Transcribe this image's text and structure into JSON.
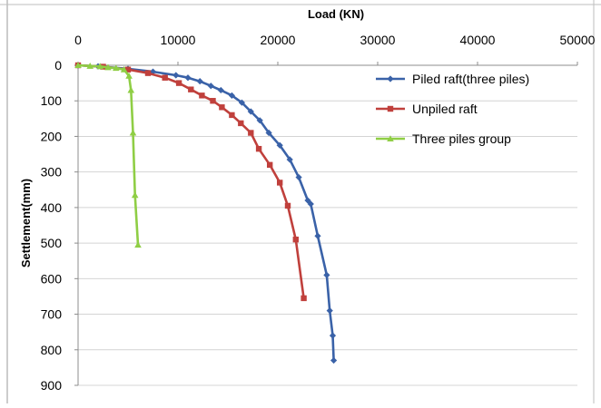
{
  "chart_data": {
    "type": "line",
    "title": "",
    "xlabel": "Load (KN)",
    "ylabel": "Settlement(mm)",
    "x_axis_position": "top",
    "y_axis_inverted": true,
    "xlim": [
      0,
      50000
    ],
    "ylim": [
      0,
      900
    ],
    "x_ticks": [
      0,
      10000,
      20000,
      30000,
      40000,
      50000
    ],
    "y_ticks": [
      0,
      100,
      200,
      300,
      400,
      500,
      600,
      700,
      800,
      900
    ],
    "grid": "horizontal",
    "legend_position": "top-right",
    "series": [
      {
        "name": "Piled raft(three piles)",
        "color": "#3a62a8",
        "marker": "diamond",
        "points": [
          [
            0,
            0
          ],
          [
            2000,
            3
          ],
          [
            5000,
            10
          ],
          [
            7500,
            18
          ],
          [
            9800,
            28
          ],
          [
            11000,
            35
          ],
          [
            12200,
            45
          ],
          [
            13300,
            58
          ],
          [
            14300,
            70
          ],
          [
            15400,
            85
          ],
          [
            16400,
            105
          ],
          [
            17300,
            130
          ],
          [
            18200,
            155
          ],
          [
            19100,
            190
          ],
          [
            20200,
            225
          ],
          [
            21200,
            265
          ],
          [
            22100,
            315
          ],
          [
            23000,
            380
          ],
          [
            23300,
            390
          ],
          [
            24000,
            480
          ],
          [
            24900,
            590
          ],
          [
            25200,
            690
          ],
          [
            25500,
            760
          ],
          [
            25600,
            830
          ]
        ]
      },
      {
        "name": "Unpiled raft",
        "color": "#c0403c",
        "marker": "square",
        "points": [
          [
            0,
            0
          ],
          [
            2500,
            4
          ],
          [
            5000,
            12
          ],
          [
            7000,
            22
          ],
          [
            8700,
            35
          ],
          [
            10100,
            50
          ],
          [
            11300,
            68
          ],
          [
            12400,
            85
          ],
          [
            13500,
            100
          ],
          [
            14400,
            118
          ],
          [
            15400,
            140
          ],
          [
            16300,
            163
          ],
          [
            17300,
            190
          ],
          [
            18100,
            235
          ],
          [
            19200,
            280
          ],
          [
            20200,
            330
          ],
          [
            21000,
            395
          ],
          [
            21800,
            490
          ],
          [
            22600,
            655
          ]
        ]
      },
      {
        "name": "Three piles group",
        "color": "#8fce45",
        "marker": "triangle",
        "points": [
          [
            0,
            0
          ],
          [
            1200,
            2
          ],
          [
            2200,
            3
          ],
          [
            3000,
            6
          ],
          [
            3800,
            8
          ],
          [
            4600,
            12
          ],
          [
            5100,
            30
          ],
          [
            5300,
            70
          ],
          [
            5500,
            190
          ],
          [
            5700,
            365
          ],
          [
            6000,
            505
          ]
        ]
      }
    ]
  }
}
